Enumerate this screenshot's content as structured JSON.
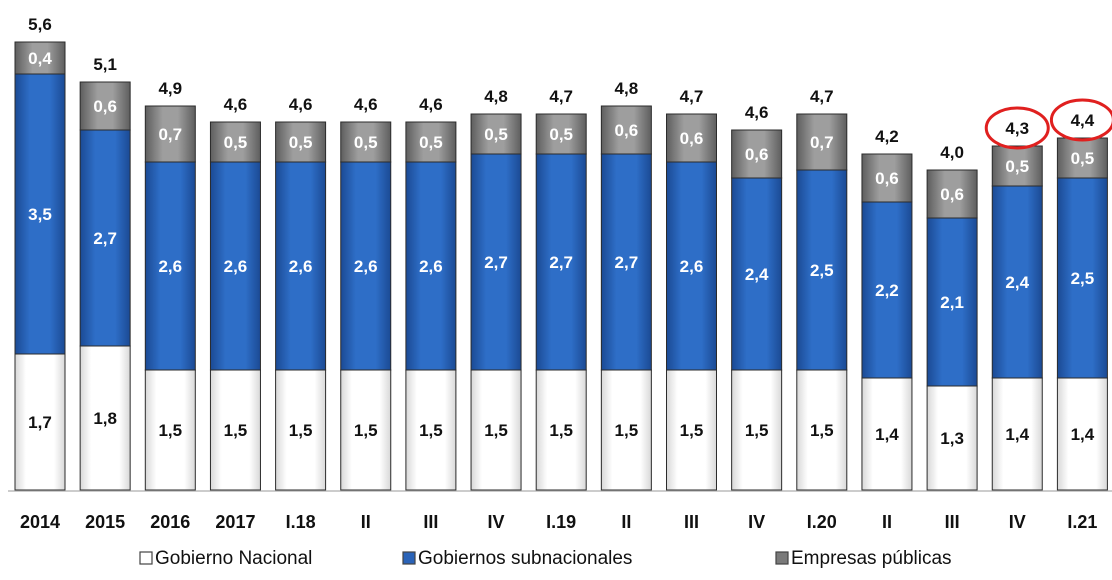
{
  "chart_data": {
    "type": "bar",
    "stacked": true,
    "categories": [
      "2014",
      "2015",
      "2016",
      "2017",
      "I.18",
      "II",
      "III",
      "IV",
      "I.19",
      "II",
      "III",
      "IV",
      "I.20",
      "II",
      "III",
      "IV",
      "I.21"
    ],
    "series": [
      {
        "name": "Gobierno Nacional",
        "color": "#ffffff",
        "values": [
          1.7,
          1.8,
          1.5,
          1.5,
          1.5,
          1.5,
          1.5,
          1.5,
          1.5,
          1.5,
          1.5,
          1.5,
          1.5,
          1.4,
          1.3,
          1.4,
          1.4
        ],
        "labels": [
          "1,7",
          "1,8",
          "1,5",
          "1,5",
          "1,5",
          "1,5",
          "1,5",
          "1,5",
          "1,5",
          "1,5",
          "1,5",
          "1,5",
          "1,5",
          "1,4",
          "1,3",
          "1,4",
          "1,4"
        ]
      },
      {
        "name": "Gobiernos subnacionales",
        "color": "#2a63b8",
        "values": [
          3.5,
          2.7,
          2.6,
          2.6,
          2.6,
          2.6,
          2.6,
          2.7,
          2.7,
          2.7,
          2.6,
          2.4,
          2.5,
          2.2,
          2.1,
          2.4,
          2.5
        ],
        "labels": [
          "3,5",
          "2,7",
          "2,6",
          "2,6",
          "2,6",
          "2,6",
          "2,6",
          "2,7",
          "2,7",
          "2,7",
          "2,6",
          "2,4",
          "2,5",
          "2,2",
          "2,1",
          "2,4",
          "2,5"
        ]
      },
      {
        "name": "Empresas públicas",
        "color": "#8c8c8c",
        "values": [
          0.4,
          0.6,
          0.7,
          0.5,
          0.5,
          0.5,
          0.5,
          0.5,
          0.5,
          0.6,
          0.6,
          0.6,
          0.7,
          0.6,
          0.6,
          0.5,
          0.5
        ],
        "labels": [
          "0,4",
          "0,6",
          "0,7",
          "0,5",
          "0,5",
          "0,5",
          "0,5",
          "0,5",
          "0,5",
          "0,6",
          "0,6",
          "0,6",
          "0,7",
          "0,6",
          "0,6",
          "0,5",
          "0,5"
        ]
      }
    ],
    "totals": [
      5.6,
      5.1,
      4.9,
      4.6,
      4.6,
      4.6,
      4.6,
      4.8,
      4.7,
      4.8,
      4.7,
      4.6,
      4.7,
      4.2,
      4.0,
      4.3,
      4.4
    ],
    "total_labels": [
      "5,6",
      "5,1",
      "4,9",
      "4,6",
      "4,6",
      "4,6",
      "4,6",
      "4,8",
      "4,7",
      "4,8",
      "4,7",
      "4,6",
      "4,7",
      "4,2",
      "4,0",
      "4,3",
      "4,4"
    ],
    "highlighted_totals": [
      15,
      16
    ],
    "highlight_color": "#e0201f",
    "ylim": [
      0,
      5.6
    ],
    "grid": false,
    "legend_position": "bottom",
    "title": "",
    "xlabel": "",
    "ylabel": ""
  }
}
